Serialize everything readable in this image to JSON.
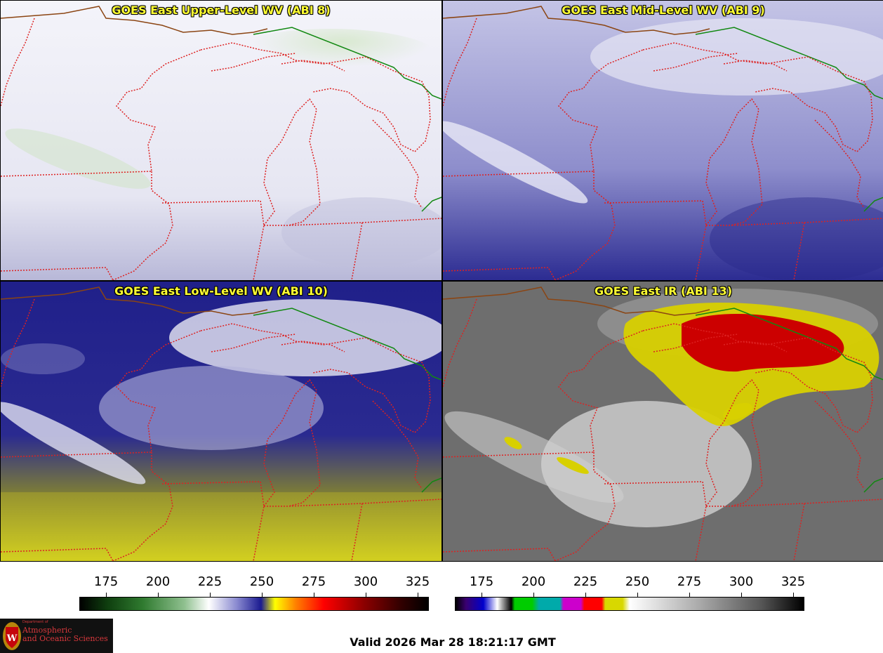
{
  "panels": [
    {
      "title": "GOES East Upper-Level WV (ABI 8)",
      "palette": "upper"
    },
    {
      "title": "GOES East Mid-Level WV (ABI 9)",
      "palette": "mid"
    },
    {
      "title": "GOES East Low-Level WV (ABI 10)",
      "palette": "low"
    },
    {
      "title": "GOES East IR (ABI 13)",
      "palette": "ir"
    }
  ],
  "colorbars": [
    {
      "name": "wv-colorbar",
      "ticks": [
        "175",
        "200",
        "225",
        "250",
        "275",
        "300",
        "325"
      ],
      "range": [
        160,
        330
      ]
    },
    {
      "name": "ir-colorbar",
      "ticks": [
        "175",
        "200",
        "225",
        "250",
        "275",
        "300",
        "325"
      ],
      "range": [
        160,
        330
      ]
    }
  ],
  "valid_time": "Valid 2026 Mar 28 18:21:17 GMT",
  "logo": {
    "line1": "Atmospheric",
    "line2": "and Oceanic Sciences",
    "small1": "Department of",
    "small2": ""
  },
  "colors": {
    "state_border": "#dd2222",
    "country_border": "#8b4513",
    "canada_border": "#118811",
    "title_text": "#ffff33"
  }
}
